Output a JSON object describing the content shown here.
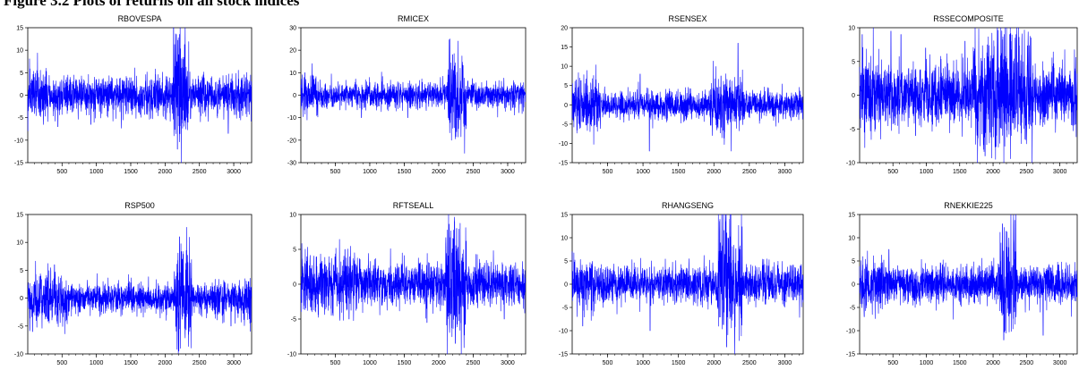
{
  "figure": {
    "title": "Figure 3.2 Plots of returns on all stock indices"
  },
  "series_color": "#0000ff",
  "chart_data": [
    {
      "type": "line",
      "title": "RBOVESPA",
      "xlabel": "",
      "ylabel": "",
      "xlim": [
        1,
        3260
      ],
      "ylim": [
        -15,
        15
      ],
      "xticks": [
        500,
        1000,
        1500,
        2000,
        2500,
        3000
      ],
      "yticks": [
        -15,
        -10,
        -5,
        0,
        5,
        10,
        15
      ],
      "base_amp": 2.2,
      "spikes": [
        [
          2165,
          13.5
        ],
        [
          2180,
          -12
        ],
        [
          2200,
          9
        ],
        [
          2230,
          6
        ],
        [
          2920,
          -8.5
        ],
        [
          2335,
          -6
        ],
        [
          440,
          -7
        ],
        [
          920,
          -6.5
        ]
      ],
      "bursts": [
        [
          2120,
          2350,
          3.0
        ],
        [
          1,
          200,
          1.4
        ]
      ]
    },
    {
      "type": "line",
      "title": "RMICEX",
      "xlabel": "",
      "ylabel": "",
      "xlim": [
        1,
        3260
      ],
      "ylim": [
        -30,
        30
      ],
      "xticks": [
        500,
        1000,
        1500,
        2000,
        2500,
        3000
      ],
      "yticks": [
        -30,
        -20,
        -10,
        0,
        10,
        20,
        30
      ],
      "base_amp": 2.8,
      "spikes": [
        [
          2165,
          25
        ],
        [
          2185,
          -20
        ],
        [
          2200,
          18
        ],
        [
          1550,
          -10
        ],
        [
          880,
          -10
        ],
        [
          2230,
          13
        ],
        [
          60,
          10
        ]
      ],
      "bursts": [
        [
          2130,
          2400,
          3.5
        ],
        [
          1,
          250,
          1.6
        ]
      ]
    },
    {
      "type": "line",
      "title": "RSENSEX",
      "xlabel": "",
      "ylabel": "",
      "xlim": [
        1,
        3260
      ],
      "ylim": [
        -15,
        20
      ],
      "xticks": [
        500,
        1000,
        1500,
        2000,
        2500,
        3000
      ],
      "yticks": [
        -15,
        -10,
        -5,
        0,
        5,
        10,
        15,
        20
      ],
      "base_amp": 1.8,
      "spikes": [
        [
          2340,
          16
        ],
        [
          1090,
          -12
        ],
        [
          2245,
          -12
        ],
        [
          60,
          6.5
        ],
        [
          2150,
          -7
        ],
        [
          2100,
          7.5
        ],
        [
          960,
          8
        ]
      ],
      "bursts": [
        [
          1950,
          2420,
          2.2
        ],
        [
          1,
          400,
          1.8
        ]
      ]
    },
    {
      "type": "line",
      "title": "RSSECOMPOSITE",
      "xlabel": "",
      "ylabel": "",
      "xlim": [
        1,
        3260
      ],
      "ylim": [
        -10,
        10
      ],
      "xticks": [
        500,
        1000,
        1500,
        2000,
        2500,
        3000
      ],
      "yticks": [
        -10,
        -5,
        0,
        5,
        10
      ],
      "base_amp": 2.2,
      "spikes": [
        [
          40,
          9
        ],
        [
          470,
          9.5
        ],
        [
          620,
          9
        ],
        [
          1880,
          -9
        ],
        [
          2170,
          9
        ],
        [
          2250,
          9
        ],
        [
          840,
          -6
        ],
        [
          1580,
          8
        ],
        [
          2480,
          -6.5
        ],
        [
          990,
          7
        ]
      ],
      "bursts": [
        [
          1700,
          2600,
          2.0
        ],
        [
          1,
          300,
          1.4
        ]
      ]
    },
    {
      "type": "line",
      "title": "RSP500",
      "xlabel": "",
      "ylabel": "",
      "xlim": [
        1,
        3260
      ],
      "ylim": [
        -10,
        15
      ],
      "xticks": [
        500,
        1000,
        1500,
        2000,
        2500,
        3000
      ],
      "yticks": [
        -10,
        -5,
        0,
        5,
        10,
        15
      ],
      "base_amp": 1.3,
      "spikes": [
        [
          2210,
          11
        ],
        [
          2200,
          -9.5
        ],
        [
          2225,
          -9
        ],
        [
          2250,
          7
        ],
        [
          70,
          -6
        ],
        [
          2960,
          -5
        ],
        [
          390,
          6
        ]
      ],
      "bursts": [
        [
          2130,
          2400,
          3.0
        ],
        [
          1,
          600,
          1.8
        ],
        [
          2700,
          3260,
          1.4
        ]
      ]
    },
    {
      "type": "line",
      "title": "RFTSEALL",
      "xlabel": "",
      "ylabel": "",
      "xlim": [
        1,
        3260
      ],
      "ylim": [
        -10,
        10
      ],
      "xticks": [
        500,
        1000,
        1500,
        2000,
        2500,
        3000
      ],
      "yticks": [
        -10,
        -5,
        0,
        5,
        10
      ],
      "base_amp": 1.6,
      "spikes": [
        [
          2230,
          9
        ],
        [
          2240,
          -8.5
        ],
        [
          2260,
          8
        ],
        [
          640,
          5
        ],
        [
          700,
          -5
        ],
        [
          1830,
          -5.5
        ],
        [
          2950,
          -5
        ],
        [
          2150,
          6
        ]
      ],
      "bursts": [
        [
          2100,
          2400,
          2.6
        ],
        [
          1,
          800,
          1.4
        ]
      ]
    },
    {
      "type": "line",
      "title": "RHANGSENG",
      "xlabel": "",
      "ylabel": "",
      "xlim": [
        1,
        3260
      ],
      "ylim": [
        -15,
        15
      ],
      "xticks": [
        500,
        1000,
        1500,
        2000,
        2500,
        3000
      ],
      "yticks": [
        -15,
        -10,
        -5,
        0,
        5,
        10,
        15
      ],
      "base_amp": 2.0,
      "spikes": [
        [
          2170,
          13.5
        ],
        [
          2180,
          -13.5
        ],
        [
          2120,
          8
        ],
        [
          150,
          -9
        ],
        [
          1100,
          -10
        ],
        [
          2200,
          10
        ]
      ],
      "bursts": [
        [
          2050,
          2400,
          3.2
        ],
        [
          1,
          300,
          1.5
        ]
      ]
    },
    {
      "type": "line",
      "title": "RNEKKIE225",
      "xlabel": "",
      "ylabel": "",
      "xlim": [
        1,
        3260
      ],
      "ylim": [
        -15,
        15
      ],
      "xticks": [
        500,
        1000,
        1500,
        2000,
        2500,
        3000
      ],
      "yticks": [
        -15,
        -10,
        -5,
        0,
        5,
        10,
        15
      ],
      "base_amp": 2.0,
      "spikes": [
        [
          2140,
          13
        ],
        [
          2160,
          -12
        ],
        [
          2750,
          -11
        ],
        [
          70,
          -7
        ],
        [
          2200,
          8
        ],
        [
          440,
          7.5
        ]
      ],
      "bursts": [
        [
          2100,
          2350,
          3.0
        ],
        [
          1,
          400,
          1.4
        ]
      ]
    }
  ]
}
